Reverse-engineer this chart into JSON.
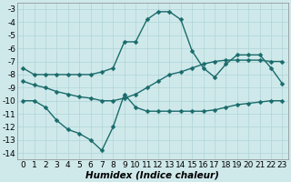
{
  "xlabel": "Humidex (Indice chaleur)",
  "background_color": "#cfe9eb",
  "grid_color": "#afd4d6",
  "line_color": "#1a6b6b",
  "xlim": [
    -0.5,
    23.5
  ],
  "ylim": [
    -14.5,
    -2.5
  ],
  "xticks": [
    0,
    1,
    2,
    3,
    4,
    5,
    6,
    7,
    8,
    9,
    10,
    11,
    12,
    13,
    14,
    15,
    16,
    17,
    18,
    19,
    20,
    21,
    22,
    23
  ],
  "yticks": [
    -14,
    -13,
    -12,
    -11,
    -10,
    -9,
    -8,
    -7,
    -6,
    -5,
    -4,
    -3
  ],
  "line1_x": [
    0,
    1,
    2,
    3,
    4,
    5,
    6,
    7,
    8,
    9,
    10,
    11,
    12,
    13,
    14,
    15,
    16,
    17,
    18,
    19,
    20,
    21,
    22,
    23
  ],
  "line1_y": [
    -7.5,
    -8.0,
    -8.0,
    -8.0,
    -8.0,
    -8.0,
    -8.0,
    -7.8,
    -7.5,
    -5.5,
    -5.5,
    -3.8,
    -3.2,
    -3.2,
    -3.8,
    -6.2,
    -7.5,
    -8.2,
    -7.2,
    -6.5,
    -6.5,
    -6.5,
    -7.5,
    -8.7
  ],
  "line2_x": [
    0,
    1,
    2,
    3,
    4,
    5,
    6,
    7,
    8,
    9,
    10,
    11,
    12,
    13,
    14,
    15,
    16,
    17,
    18,
    19,
    20,
    21,
    22,
    23
  ],
  "line2_y": [
    -8.5,
    -8.8,
    -9.0,
    -9.3,
    -9.5,
    -9.7,
    -9.8,
    -10.0,
    -10.0,
    -9.8,
    -9.5,
    -9.0,
    -8.5,
    -8.0,
    -7.8,
    -7.5,
    -7.2,
    -7.0,
    -6.9,
    -6.9,
    -6.9,
    -6.9,
    -7.0,
    -7.0
  ],
  "line3_x": [
    0,
    1,
    2,
    3,
    4,
    5,
    6,
    7,
    8,
    9,
    10,
    11,
    12,
    13,
    14,
    15,
    16,
    17,
    18,
    19,
    20,
    21,
    22,
    23
  ],
  "line3_y": [
    -10.0,
    -10.0,
    -10.5,
    -11.5,
    -12.2,
    -12.5,
    -13.0,
    -13.8,
    -12.0,
    -9.5,
    -10.5,
    -10.8,
    -10.8,
    -10.8,
    -10.8,
    -10.8,
    -10.8,
    -10.7,
    -10.5,
    -10.3,
    -10.2,
    -10.1,
    -10.0,
    -10.0
  ],
  "marker": "D",
  "marker_size": 2.5,
  "line_width": 1.0,
  "tick_fontsize": 6.5,
  "xlabel_fontsize": 7.5
}
